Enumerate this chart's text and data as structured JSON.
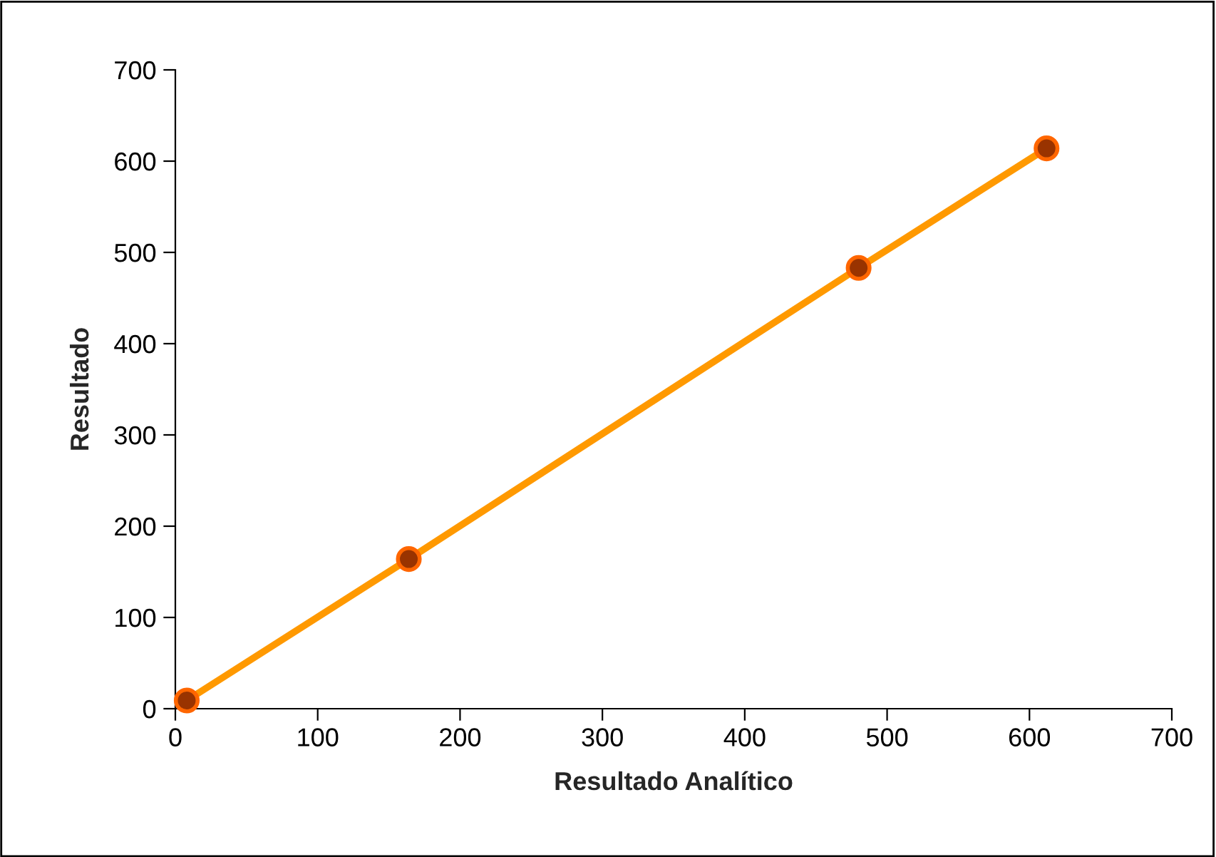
{
  "chart_data": {
    "type": "line",
    "xlabel": "Resultado Analítico",
    "ylabel": "Resultado",
    "series": [
      {
        "color": "#ff9900",
        "x": [
          8,
          164,
          480,
          612
        ],
        "values": [
          9,
          164,
          483,
          614
        ]
      }
    ],
    "marker": "circle",
    "line_style": "solid",
    "xlim": [
      0,
      700
    ],
    "xticks": [
      0,
      100,
      200,
      300,
      400,
      500,
      600,
      700
    ],
    "ylim": [
      0,
      700
    ],
    "yticks": [
      0,
      100,
      200,
      300,
      400,
      500,
      600,
      700
    ],
    "grid": false
  }
}
